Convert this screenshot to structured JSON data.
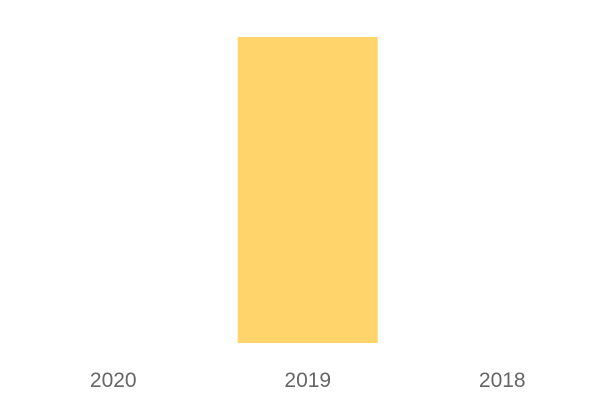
{
  "chart_data": {
    "type": "bar",
    "categories": [
      "2020",
      "2019",
      "2018"
    ],
    "values": [
      0,
      1,
      0
    ],
    "title": "",
    "xlabel": "",
    "ylabel": "",
    "ylim": [
      0,
      1
    ],
    "grid": false,
    "legend": "none",
    "bar_color": "#FFD56B",
    "tick_color": "#666666"
  }
}
